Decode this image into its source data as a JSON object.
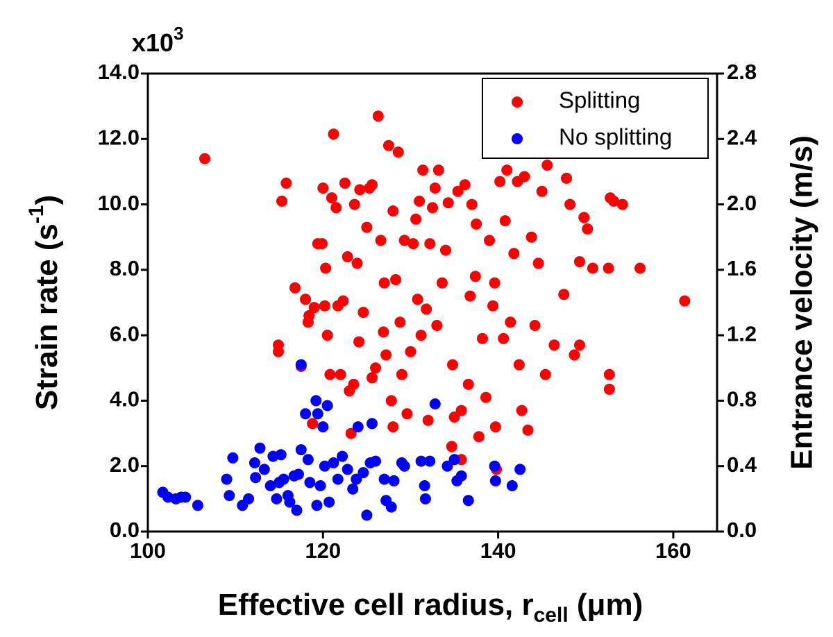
{
  "chart_data": {
    "type": "scatter",
    "multiplier": [
      "x10",
      "3"
    ],
    "y_label": [
      "Strain rate (s",
      "-1",
      ")"
    ],
    "y2_label": "Entrance velocity (m/s)",
    "x_label": [
      "Effective cell radius, r",
      "cell",
      " (μm)"
    ],
    "xlim": [
      100,
      165
    ],
    "xticks": [
      100,
      120,
      140,
      160
    ],
    "ylim": [
      0,
      14
    ],
    "yticks": [
      {
        "value": 0,
        "label": "0.0"
      },
      {
        "value": 2,
        "label": "2.0"
      },
      {
        "value": 4,
        "label": "4.0"
      },
      {
        "value": 6,
        "label": "6.0"
      },
      {
        "value": 8,
        "label": "8.0"
      },
      {
        "value": 10,
        "label": "10.0"
      },
      {
        "value": 12,
        "label": "12.0"
      },
      {
        "value": 14,
        "label": "14.0"
      }
    ],
    "y2lim": [
      0,
      2.8
    ],
    "y2ticks": [
      {
        "value": 0,
        "label": "0.0"
      },
      {
        "value": 0.4,
        "label": "0.4"
      },
      {
        "value": 0.8,
        "label": "0.8"
      },
      {
        "value": 1.2,
        "label": "1.2"
      },
      {
        "value": 1.6,
        "label": "1.6"
      },
      {
        "value": 2.0,
        "label": "2.0"
      },
      {
        "value": 2.4,
        "label": "2.4"
      },
      {
        "value": 2.8,
        "label": "2.8"
      }
    ],
    "legend": "upper right",
    "series": [
      {
        "name": "Splitting",
        "color": "#ff0000",
        "x": [
          106.5,
          115.8,
          115.3,
          114.9,
          114.9,
          116.8,
          117.5,
          118,
          118.4,
          118.3,
          119,
          119.4,
          119.9,
          120,
          120.2,
          120.3,
          120.5,
          121,
          121.2,
          121.5,
          121.7,
          122,
          122.3,
          122.5,
          122.8,
          123,
          123.2,
          123.6,
          123.9,
          124.2,
          124.6,
          125,
          125.3,
          125.6,
          126,
          126.3,
          126.6,
          127,
          127.5,
          127.8,
          128,
          128.3,
          128.6,
          128.8,
          129.3,
          129.6,
          130,
          130.3,
          130.6,
          131,
          131.4,
          131.8,
          132.2,
          132.5,
          132.8,
          133.2,
          133.6,
          134,
          134.3,
          134.7,
          135,
          135.4,
          135.8,
          136.2,
          136.6,
          137,
          137.4,
          137.8,
          138.2,
          138.6,
          139,
          139.4,
          139.7,
          140.2,
          140.6,
          141,
          141.4,
          141.8,
          142.2,
          142.7,
          143,
          143.4,
          143.8,
          144.2,
          144.6,
          145,
          145.4,
          145.6,
          146.4,
          147.5,
          147.8,
          148.2,
          148.7,
          149.3,
          149.3,
          149.8,
          150.2,
          150.8,
          152.6,
          152.7,
          152.7,
          152.8,
          153.2,
          154.2,
          156.2,
          161.3,
          118.8,
          124.1,
          125.6,
          127.2,
          129,
          131.2,
          133,
          136.8,
          139.6,
          142.4,
          123.5,
          126.9,
          130.8,
          134.8,
          137.5,
          140.8,
          128,
          132,
          120.8,
          135.8,
          139.8
        ],
        "values": [
          11.4,
          10.65,
          10.1,
          5.7,
          5.5,
          7.45,
          5.05,
          7.1,
          6.6,
          6.4,
          6.85,
          8.8,
          8.8,
          10.5,
          6.9,
          8.05,
          6.0,
          10.2,
          12.15,
          9.9,
          6.9,
          4.8,
          7.05,
          10.65,
          8.4,
          4.3,
          3.0,
          10.0,
          8.2,
          10.45,
          6.7,
          9.3,
          10.5,
          10.6,
          5.0,
          12.7,
          8.9,
          7.6,
          11.8,
          4.0,
          9.8,
          7.7,
          11.6,
          6.4,
          8.9,
          3.6,
          5.5,
          8.8,
          9.55,
          10.1,
          11.05,
          6.8,
          8.8,
          9.9,
          10.5,
          11.05,
          7.6,
          8.6,
          10.05,
          2.6,
          3.5,
          10.4,
          3.7,
          10.6,
          4.5,
          10.0,
          7.8,
          2.9,
          5.9,
          4.1,
          8.9,
          6.9,
          3.2,
          10.7,
          5.9,
          11.05,
          6.4,
          8.5,
          10.7,
          3.7,
          10.85,
          3.1,
          9.0,
          6.3,
          8.2,
          10.4,
          4.8,
          11.2,
          5.7,
          7.25,
          10.8,
          10.0,
          5.4,
          8.25,
          5.7,
          9.6,
          9.25,
          8.05,
          8.05,
          4.8,
          4.35,
          10.2,
          10.1,
          10.0,
          8.05,
          7.05,
          3.3,
          5.8,
          4.7,
          5.4,
          4.8,
          6.0,
          6.3,
          7.2,
          7.6,
          5.1,
          4.5,
          6.1,
          7.1,
          5.1,
          9.4,
          9.5,
          3.2,
          3.4,
          4.8,
          2.2,
          1.9
        ]
      },
      {
        "name": "No splitting",
        "color": "#0000ff",
        "x": [
          101.7,
          102.3,
          103.2,
          103.8,
          104.3,
          105.7,
          109,
          109.3,
          109.7,
          110.8,
          111.5,
          112.2,
          112.3,
          112.8,
          113.3,
          114,
          114.3,
          114.7,
          115,
          115.2,
          115.5,
          116,
          116.2,
          116.7,
          117,
          117.2,
          117.5,
          117.5,
          118,
          118.3,
          118.5,
          119.2,
          119.3,
          119.4,
          119.7,
          120,
          120.2,
          120.5,
          120.7,
          121.2,
          121.7,
          122.2,
          122.8,
          123.4,
          123.8,
          124,
          124.6,
          125,
          125.4,
          125.6,
          126,
          127,
          127.2,
          127.8,
          128.1,
          129,
          129.3,
          131.2,
          131.6,
          131.7,
          132.2,
          132.8,
          134.2,
          135,
          135.3,
          135.8,
          136.6,
          139.6,
          139.7,
          141.6,
          142.5
        ],
        "values": [
          1.2,
          1.05,
          1.0,
          1.05,
          1.05,
          0.8,
          1.6,
          1.1,
          2.25,
          0.8,
          1.0,
          2.1,
          1.65,
          2.55,
          1.9,
          1.4,
          2.3,
          1.0,
          1.5,
          2.35,
          1.6,
          1.1,
          0.9,
          1.7,
          0.65,
          1.75,
          2.5,
          5.1,
          3.6,
          2.2,
          1.5,
          4.0,
          0.8,
          3.6,
          1.4,
          3.2,
          2.0,
          3.85,
          0.9,
          2.1,
          1.6,
          2.3,
          1.9,
          1.3,
          1.6,
          3.2,
          1.8,
          0.5,
          2.1,
          3.3,
          2.15,
          1.6,
          0.95,
          0.75,
          1.55,
          2.1,
          2.0,
          2.15,
          1.4,
          1.0,
          2.15,
          3.9,
          2.0,
          2.2,
          1.55,
          1.7,
          0.95,
          2.0,
          1.55,
          1.4,
          1.9
        ]
      }
    ]
  }
}
